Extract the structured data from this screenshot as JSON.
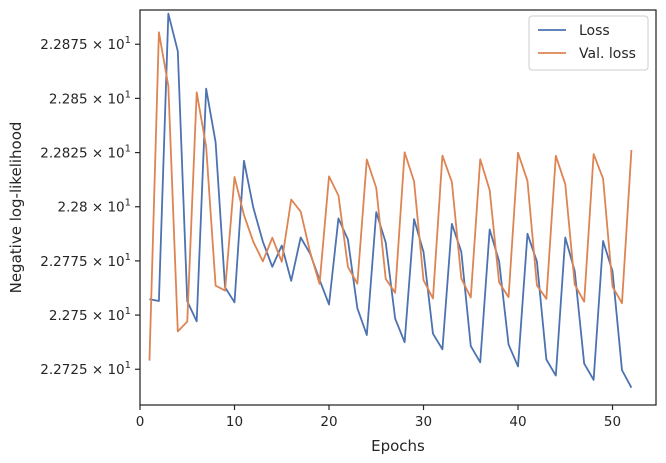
{
  "chart_data": {
    "type": "line",
    "xlabel": "Epochs",
    "ylabel": "Negative log-likelihood",
    "xlim": [
      0,
      54.6
    ],
    "ylim": [
      22.7085,
      22.8908
    ],
    "grid": false,
    "legend_position": "top-right",
    "x_ticks": [
      {
        "value": 0,
        "label": "0"
      },
      {
        "value": 10,
        "label": "10"
      },
      {
        "value": 20,
        "label": "20"
      },
      {
        "value": 30,
        "label": "30"
      },
      {
        "value": 40,
        "label": "40"
      },
      {
        "value": 50,
        "label": "50"
      }
    ],
    "y_ticks": [
      {
        "value": 22.725,
        "mantissa": "2.2725",
        "exp": "1"
      },
      {
        "value": 22.75,
        "mantissa": "2.275",
        "exp": "1"
      },
      {
        "value": 22.775,
        "mantissa": "2.2775",
        "exp": "1"
      },
      {
        "value": 22.8,
        "mantissa": "2.28",
        "exp": "1"
      },
      {
        "value": 22.825,
        "mantissa": "2.2825",
        "exp": "1"
      },
      {
        "value": 22.85,
        "mantissa": "2.285",
        "exp": "1"
      },
      {
        "value": 22.875,
        "mantissa": "2.2875",
        "exp": "1"
      }
    ],
    "tick_times": "×",
    "x": [
      1,
      2,
      3,
      4,
      5,
      6,
      7,
      8,
      9,
      10,
      11,
      12,
      13,
      14,
      15,
      16,
      17,
      18,
      19,
      20,
      21,
      22,
      23,
      24,
      25,
      26,
      27,
      28,
      29,
      30,
      31,
      32,
      33,
      34,
      35,
      36,
      37,
      38,
      39,
      40,
      41,
      42,
      43,
      44,
      45,
      46,
      47,
      48,
      49,
      50,
      51,
      52
    ],
    "series": [
      {
        "name": "Loss",
        "color": "#4c72b0",
        "values": [
          22.7573,
          22.7565,
          22.8891,
          22.8718,
          22.7564,
          22.7471,
          22.8545,
          22.8298,
          22.7628,
          22.7559,
          22.8212,
          22.7994,
          22.7839,
          22.7723,
          22.7821,
          22.7658,
          22.7858,
          22.7784,
          22.7663,
          22.7549,
          22.7946,
          22.7849,
          22.7532,
          22.7408,
          22.7975,
          22.7835,
          22.7484,
          22.7375,
          22.7943,
          22.7791,
          22.7414,
          22.7342,
          22.7921,
          22.7792,
          22.7357,
          22.7282,
          22.7895,
          22.7748,
          22.7364,
          22.7263,
          22.7875,
          22.7747,
          22.7295,
          22.7221,
          22.7858,
          22.7703,
          22.7276,
          22.7201,
          22.7842,
          22.7702,
          22.7246,
          22.7165
        ]
      },
      {
        "name": "Val. loss",
        "color": "#dd8452",
        "values": [
          22.729,
          22.8805,
          22.8557,
          22.7425,
          22.747,
          22.8528,
          22.8277,
          22.7636,
          22.7613,
          22.8137,
          22.7962,
          22.7837,
          22.7748,
          22.7857,
          22.7746,
          22.8033,
          22.7978,
          22.7791,
          22.7644,
          22.814,
          22.8052,
          22.7723,
          22.7645,
          22.8218,
          22.8087,
          22.7667,
          22.7603,
          22.8251,
          22.8117,
          22.7661,
          22.7577,
          22.8236,
          22.8114,
          22.7669,
          22.7581,
          22.8219,
          22.8077,
          22.7651,
          22.7583,
          22.8249,
          22.8119,
          22.7637,
          22.7575,
          22.8235,
          22.8104,
          22.7641,
          22.7562,
          22.8243,
          22.813,
          22.7631,
          22.7555,
          22.8262
        ]
      }
    ]
  }
}
